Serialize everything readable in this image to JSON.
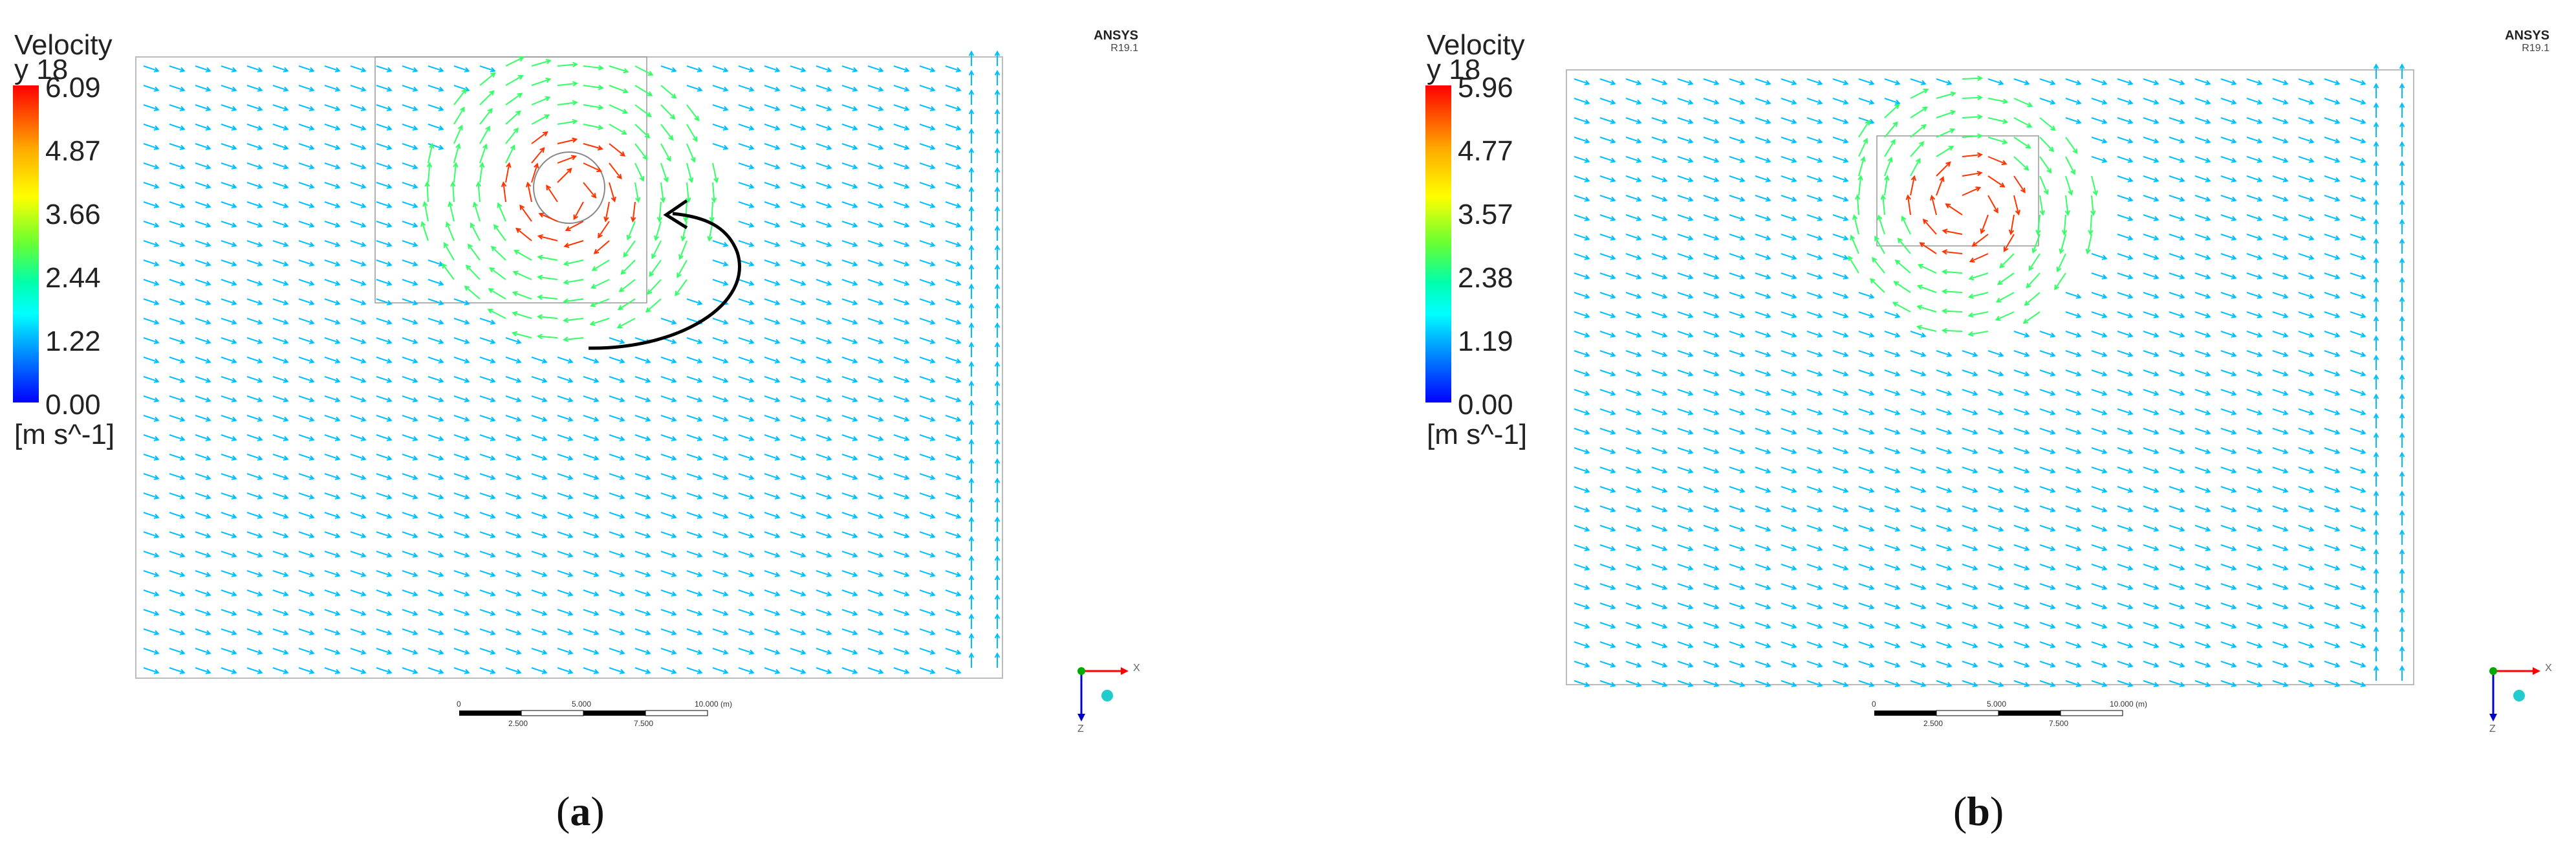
{
  "colors": {
    "arrow_low": "#00bfff",
    "arrow_mid": "#33ff66",
    "arrow_high": "#ff3300",
    "axis_x": "#ff0000",
    "axis_y": "#00aa00",
    "axis_z": "#0000cc"
  },
  "panels": [
    {
      "legend_title": "Velocity",
      "legend_subtitle": "y 18",
      "ticks": [
        "6.09",
        "4.87",
        "3.66",
        "2.44",
        "1.22",
        "0.00"
      ],
      "unit": "[m s^-1]",
      "brand": "ANSYS",
      "version": "R19.1",
      "scale_top": [
        "0",
        "5.000",
        "10.000 (m)"
      ],
      "scale_bottom": [
        "2.500",
        "7.500"
      ],
      "caption_open": "(",
      "caption_letter": "a",
      "caption_close": ")",
      "axis_x": "X",
      "axis_z": "Z"
    },
    {
      "legend_title": "Velocity",
      "legend_subtitle": "y 18",
      "ticks": [
        "5.96",
        "4.77",
        "3.57",
        "2.38",
        "1.19",
        "0.00"
      ],
      "unit": "[m s^-1]",
      "brand": "ANSYS",
      "version": "R19.1",
      "scale_top": [
        "0",
        "5.000",
        "10.000 (m)"
      ],
      "scale_bottom": [
        "2.500",
        "7.500"
      ],
      "caption_open": "(",
      "caption_letter": "b",
      "caption_close": ")",
      "axis_x": "X",
      "axis_z": "Z"
    }
  ]
}
